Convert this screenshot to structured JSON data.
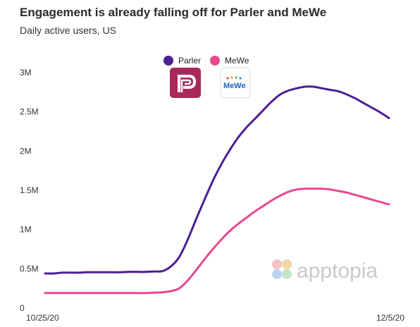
{
  "title": "Engagement is already falling off for Parler and MeWe",
  "subtitle": "Daily active users, US",
  "watermark": "apptopia",
  "colors": {
    "Parler": "#4b1f95",
    "MeWe": "#e8478f"
  },
  "icons": [
    "parler-logo-icon",
    "mewe-logo-icon"
  ],
  "chart_data": {
    "type": "line",
    "title": "Engagement is already falling off for Parler and MeWe",
    "subtitle": "Daily active users, US",
    "xlabel": "",
    "ylabel": "",
    "x_tick_labels": [
      "10/25/20",
      "12/5/20"
    ],
    "x": [
      "10/25/20",
      "10/26/20",
      "10/27/20",
      "10/28/20",
      "10/29/20",
      "10/30/20",
      "10/31/20",
      "11/1/20",
      "11/2/20",
      "11/3/20",
      "11/4/20",
      "11/5/20",
      "11/6/20",
      "11/7/20",
      "11/8/20",
      "11/9/20",
      "11/10/20",
      "11/11/20",
      "11/12/20",
      "11/13/20",
      "11/14/20",
      "11/15/20",
      "11/16/20",
      "11/17/20",
      "11/18/20",
      "11/19/20",
      "11/20/20",
      "11/21/20",
      "11/22/20",
      "11/23/20",
      "11/24/20",
      "11/25/20",
      "11/26/20",
      "11/27/20",
      "11/28/20",
      "11/29/20",
      "11/30/20",
      "12/1/20",
      "12/2/20",
      "12/3/20",
      "12/4/20",
      "12/5/20"
    ],
    "y_tick_labels": [
      "0",
      "0.5M",
      "1M",
      "1.5M",
      "2M",
      "2.5M",
      "3M"
    ],
    "y_ticks": [
      0,
      500000,
      1000000,
      1500000,
      2000000,
      2500000,
      3000000
    ],
    "ylim": [
      0,
      3000000
    ],
    "grid": false,
    "legend": "top-center",
    "series": [
      {
        "name": "Parler",
        "values": [
          440000,
          440000,
          450000,
          450000,
          450000,
          455000,
          455000,
          455000,
          455000,
          455000,
          460000,
          460000,
          460000,
          465000,
          470000,
          530000,
          650000,
          870000,
          1130000,
          1380000,
          1620000,
          1830000,
          2010000,
          2170000,
          2300000,
          2410000,
          2520000,
          2630000,
          2720000,
          2770000,
          2800000,
          2820000,
          2820000,
          2800000,
          2780000,
          2760000,
          2720000,
          2670000,
          2610000,
          2550000,
          2490000,
          2420000
        ]
      },
      {
        "name": "MeWe",
        "values": [
          190000,
          190000,
          190000,
          190000,
          190000,
          190000,
          190000,
          190000,
          190000,
          190000,
          190000,
          190000,
          190000,
          195000,
          200000,
          215000,
          250000,
          350000,
          480000,
          620000,
          750000,
          870000,
          980000,
          1070000,
          1150000,
          1230000,
          1300000,
          1370000,
          1430000,
          1480000,
          1510000,
          1520000,
          1520000,
          1520000,
          1510000,
          1490000,
          1470000,
          1440000,
          1410000,
          1380000,
          1350000,
          1320000
        ]
      }
    ]
  }
}
